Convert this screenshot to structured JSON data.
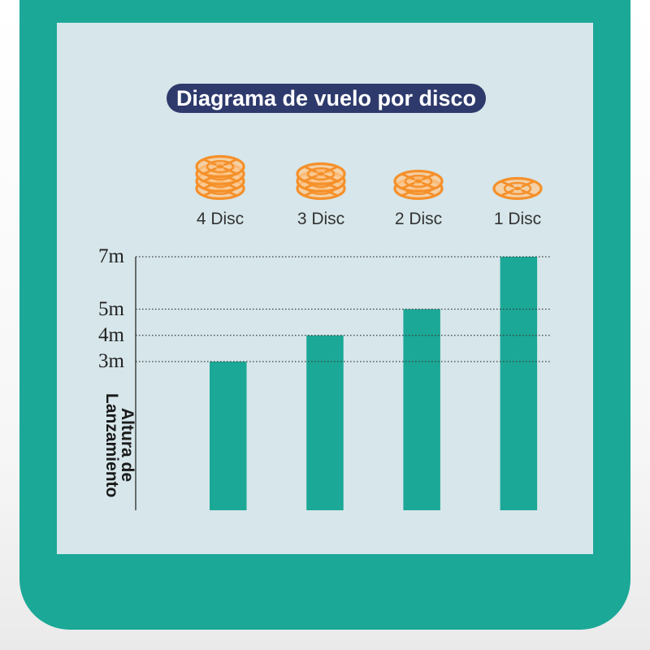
{
  "colors": {
    "frame": "#1ba897",
    "panel": "#d6e6ea",
    "title_bg": "#2e3a6c",
    "title_text": "#ffffff"
  },
  "chart_data": {
    "type": "bar",
    "title": "Diagrama de vuelo por disco",
    "categories": [
      "4 Disc",
      "3 Disc",
      "2 Disc",
      "1 Disc"
    ],
    "values": [
      3,
      4,
      5,
      7
    ],
    "yticks": [
      3,
      4,
      5,
      7
    ],
    "ytick_labels": [
      "3m",
      "4m",
      "5m",
      "7m"
    ],
    "ylabel": "Altura de Lanzamiento",
    "grid": true,
    "disc_counts": [
      4,
      3,
      2,
      1
    ],
    "disc_icon": "stacked-flying-disc-icon",
    "bar_color": "#1ba897",
    "disc_color": "#f5902a",
    "disc_fill": "#fcc88f"
  }
}
